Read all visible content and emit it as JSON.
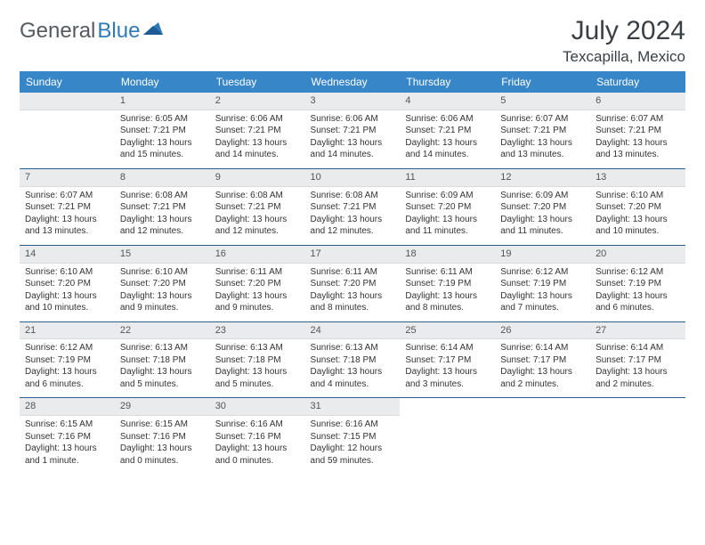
{
  "logo": {
    "text1": "General",
    "text2": "Blue"
  },
  "title": "July 2024",
  "location": "Texcapilla, Mexico",
  "colors": {
    "header_bg": "#3786c8",
    "header_fg": "#ffffff",
    "daynum_bg": "#e9ebec",
    "row_border": "#2f5f8a",
    "logo_gray": "#555a60",
    "logo_blue": "#2f7ab8"
  },
  "weekdays": [
    "Sunday",
    "Monday",
    "Tuesday",
    "Wednesday",
    "Thursday",
    "Friday",
    "Saturday"
  ],
  "weeks": [
    [
      {
        "day": "",
        "lines": [
          "",
          "",
          "",
          ""
        ]
      },
      {
        "day": "1",
        "lines": [
          "Sunrise: 6:05 AM",
          "Sunset: 7:21 PM",
          "Daylight: 13 hours",
          "and 15 minutes."
        ]
      },
      {
        "day": "2",
        "lines": [
          "Sunrise: 6:06 AM",
          "Sunset: 7:21 PM",
          "Daylight: 13 hours",
          "and 14 minutes."
        ]
      },
      {
        "day": "3",
        "lines": [
          "Sunrise: 6:06 AM",
          "Sunset: 7:21 PM",
          "Daylight: 13 hours",
          "and 14 minutes."
        ]
      },
      {
        "day": "4",
        "lines": [
          "Sunrise: 6:06 AM",
          "Sunset: 7:21 PM",
          "Daylight: 13 hours",
          "and 14 minutes."
        ]
      },
      {
        "day": "5",
        "lines": [
          "Sunrise: 6:07 AM",
          "Sunset: 7:21 PM",
          "Daylight: 13 hours",
          "and 13 minutes."
        ]
      },
      {
        "day": "6",
        "lines": [
          "Sunrise: 6:07 AM",
          "Sunset: 7:21 PM",
          "Daylight: 13 hours",
          "and 13 minutes."
        ]
      }
    ],
    [
      {
        "day": "7",
        "lines": [
          "Sunrise: 6:07 AM",
          "Sunset: 7:21 PM",
          "Daylight: 13 hours",
          "and 13 minutes."
        ]
      },
      {
        "day": "8",
        "lines": [
          "Sunrise: 6:08 AM",
          "Sunset: 7:21 PM",
          "Daylight: 13 hours",
          "and 12 minutes."
        ]
      },
      {
        "day": "9",
        "lines": [
          "Sunrise: 6:08 AM",
          "Sunset: 7:21 PM",
          "Daylight: 13 hours",
          "and 12 minutes."
        ]
      },
      {
        "day": "10",
        "lines": [
          "Sunrise: 6:08 AM",
          "Sunset: 7:21 PM",
          "Daylight: 13 hours",
          "and 12 minutes."
        ]
      },
      {
        "day": "11",
        "lines": [
          "Sunrise: 6:09 AM",
          "Sunset: 7:20 PM",
          "Daylight: 13 hours",
          "and 11 minutes."
        ]
      },
      {
        "day": "12",
        "lines": [
          "Sunrise: 6:09 AM",
          "Sunset: 7:20 PM",
          "Daylight: 13 hours",
          "and 11 minutes."
        ]
      },
      {
        "day": "13",
        "lines": [
          "Sunrise: 6:10 AM",
          "Sunset: 7:20 PM",
          "Daylight: 13 hours",
          "and 10 minutes."
        ]
      }
    ],
    [
      {
        "day": "14",
        "lines": [
          "Sunrise: 6:10 AM",
          "Sunset: 7:20 PM",
          "Daylight: 13 hours",
          "and 10 minutes."
        ]
      },
      {
        "day": "15",
        "lines": [
          "Sunrise: 6:10 AM",
          "Sunset: 7:20 PM",
          "Daylight: 13 hours",
          "and 9 minutes."
        ]
      },
      {
        "day": "16",
        "lines": [
          "Sunrise: 6:11 AM",
          "Sunset: 7:20 PM",
          "Daylight: 13 hours",
          "and 9 minutes."
        ]
      },
      {
        "day": "17",
        "lines": [
          "Sunrise: 6:11 AM",
          "Sunset: 7:20 PM",
          "Daylight: 13 hours",
          "and 8 minutes."
        ]
      },
      {
        "day": "18",
        "lines": [
          "Sunrise: 6:11 AM",
          "Sunset: 7:19 PM",
          "Daylight: 13 hours",
          "and 8 minutes."
        ]
      },
      {
        "day": "19",
        "lines": [
          "Sunrise: 6:12 AM",
          "Sunset: 7:19 PM",
          "Daylight: 13 hours",
          "and 7 minutes."
        ]
      },
      {
        "day": "20",
        "lines": [
          "Sunrise: 6:12 AM",
          "Sunset: 7:19 PM",
          "Daylight: 13 hours",
          "and 6 minutes."
        ]
      }
    ],
    [
      {
        "day": "21",
        "lines": [
          "Sunrise: 6:12 AM",
          "Sunset: 7:19 PM",
          "Daylight: 13 hours",
          "and 6 minutes."
        ]
      },
      {
        "day": "22",
        "lines": [
          "Sunrise: 6:13 AM",
          "Sunset: 7:18 PM",
          "Daylight: 13 hours",
          "and 5 minutes."
        ]
      },
      {
        "day": "23",
        "lines": [
          "Sunrise: 6:13 AM",
          "Sunset: 7:18 PM",
          "Daylight: 13 hours",
          "and 5 minutes."
        ]
      },
      {
        "day": "24",
        "lines": [
          "Sunrise: 6:13 AM",
          "Sunset: 7:18 PM",
          "Daylight: 13 hours",
          "and 4 minutes."
        ]
      },
      {
        "day": "25",
        "lines": [
          "Sunrise: 6:14 AM",
          "Sunset: 7:17 PM",
          "Daylight: 13 hours",
          "and 3 minutes."
        ]
      },
      {
        "day": "26",
        "lines": [
          "Sunrise: 6:14 AM",
          "Sunset: 7:17 PM",
          "Daylight: 13 hours",
          "and 2 minutes."
        ]
      },
      {
        "day": "27",
        "lines": [
          "Sunrise: 6:14 AM",
          "Sunset: 7:17 PM",
          "Daylight: 13 hours",
          "and 2 minutes."
        ]
      }
    ],
    [
      {
        "day": "28",
        "lines": [
          "Sunrise: 6:15 AM",
          "Sunset: 7:16 PM",
          "Daylight: 13 hours",
          "and 1 minute."
        ]
      },
      {
        "day": "29",
        "lines": [
          "Sunrise: 6:15 AM",
          "Sunset: 7:16 PM",
          "Daylight: 13 hours",
          "and 0 minutes."
        ]
      },
      {
        "day": "30",
        "lines": [
          "Sunrise: 6:16 AM",
          "Sunset: 7:16 PM",
          "Daylight: 13 hours",
          "and 0 minutes."
        ]
      },
      {
        "day": "31",
        "lines": [
          "Sunrise: 6:16 AM",
          "Sunset: 7:15 PM",
          "Daylight: 12 hours",
          "and 59 minutes."
        ]
      },
      {
        "day": "",
        "lines": [
          "",
          "",
          "",
          ""
        ]
      },
      {
        "day": "",
        "lines": [
          "",
          "",
          "",
          ""
        ]
      },
      {
        "day": "",
        "lines": [
          "",
          "",
          "",
          ""
        ]
      }
    ]
  ]
}
